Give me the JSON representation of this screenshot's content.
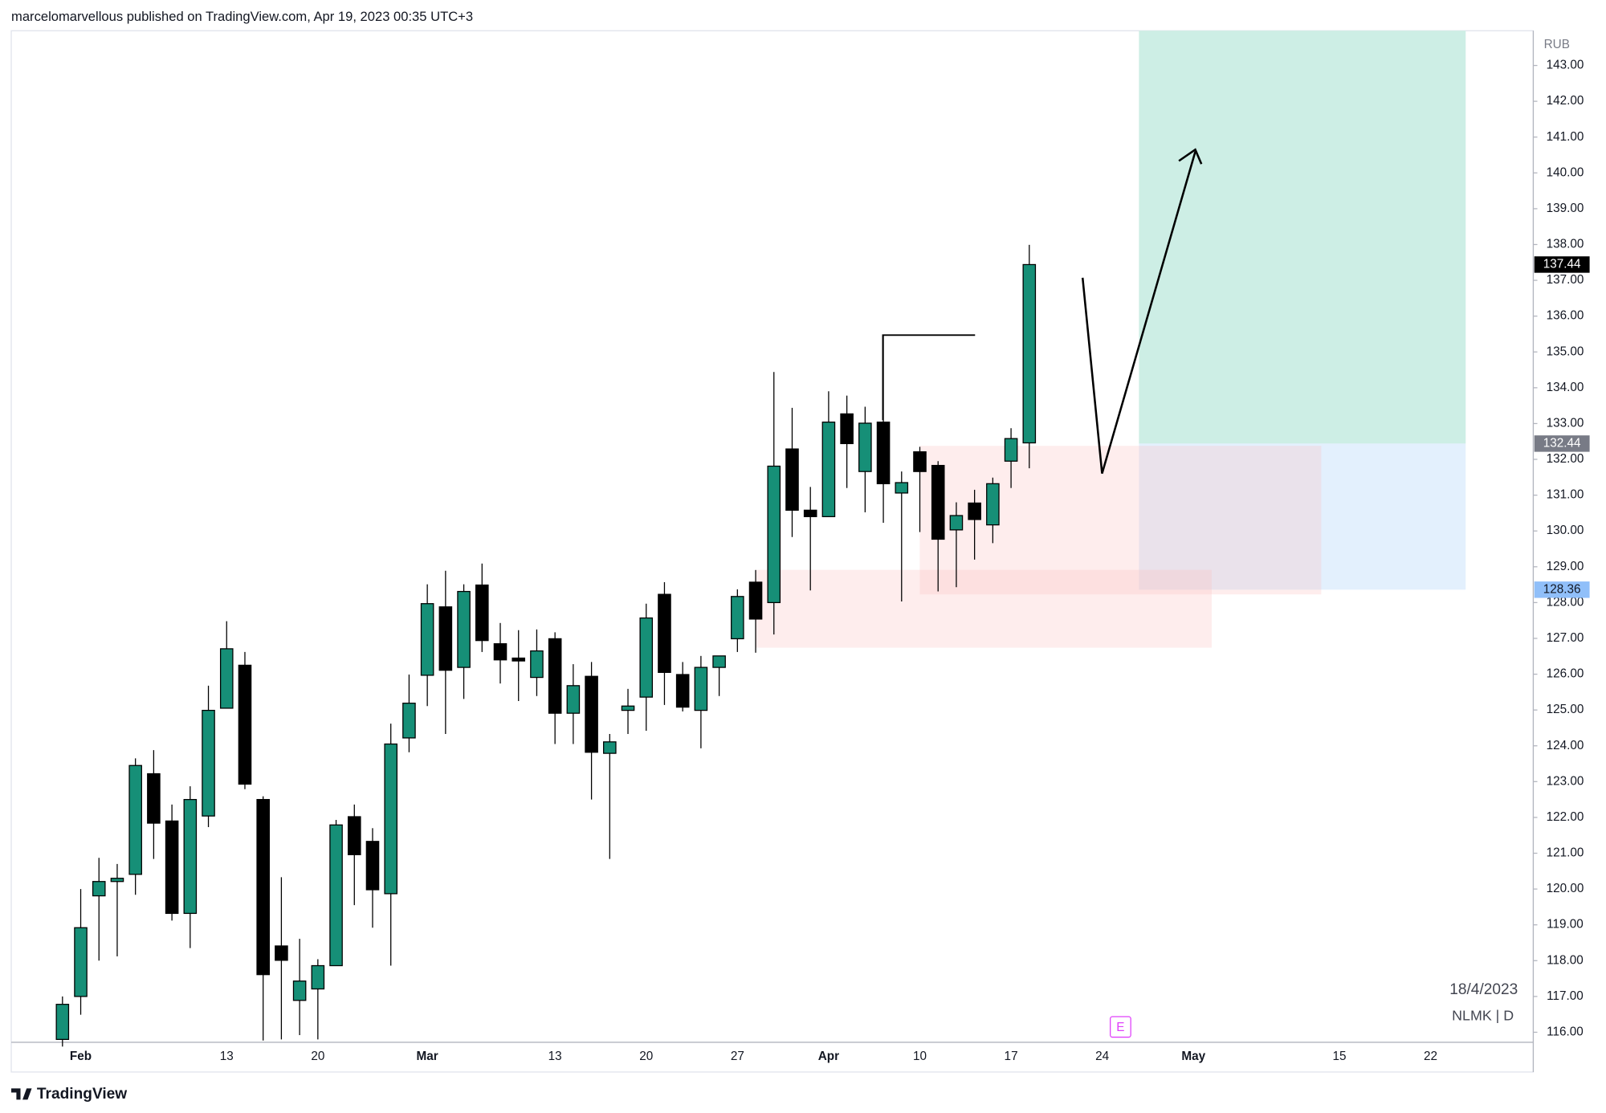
{
  "header": "marcelomarvellous published on TradingView.com, Apr 19, 2023 00:35 UTC+3",
  "chart_data": {
    "type": "candlestick",
    "currency": "RUB",
    "date_label": "18/4/2023",
    "symbol_label": "NLMK | D",
    "event_marker": "E",
    "up_color": "#168f77",
    "down_color": "#000000",
    "ylim": [
      115.72,
      143.97
    ],
    "yticks": [
      {
        "value": 116,
        "label": "116.00"
      },
      {
        "value": 117,
        "label": "117.00"
      },
      {
        "value": 118,
        "label": "118.00"
      },
      {
        "value": 119,
        "label": "119.00"
      },
      {
        "value": 120,
        "label": "120.00"
      },
      {
        "value": 121,
        "label": "121.00"
      },
      {
        "value": 122,
        "label": "122.00"
      },
      {
        "value": 123,
        "label": "123.00"
      },
      {
        "value": 124,
        "label": "124.00"
      },
      {
        "value": 125,
        "label": "125.00"
      },
      {
        "value": 126,
        "label": "126.00"
      },
      {
        "value": 127,
        "label": "127.00"
      },
      {
        "value": 128,
        "label": "128.00"
      },
      {
        "value": 129,
        "label": "129.00"
      },
      {
        "value": 130,
        "label": "130.00"
      },
      {
        "value": 131,
        "label": "131.00"
      },
      {
        "value": 132,
        "label": "132.00"
      },
      {
        "value": 133,
        "label": "133.00"
      },
      {
        "value": 134,
        "label": "134.00"
      },
      {
        "value": 135,
        "label": "135.00"
      },
      {
        "value": 136,
        "label": "136.00"
      },
      {
        "value": 137,
        "label": "137.00"
      },
      {
        "value": 138,
        "label": "138.00"
      },
      {
        "value": 139,
        "label": "139.00"
      },
      {
        "value": 140,
        "label": "140.00"
      },
      {
        "value": 141,
        "label": "141.00"
      },
      {
        "value": 142,
        "label": "142.00"
      },
      {
        "value": 143,
        "label": "143.00"
      }
    ],
    "categories": [
      null,
      "Feb",
      null,
      null,
      null,
      null,
      null,
      null,
      null,
      "13",
      null,
      null,
      null,
      null,
      "20",
      null,
      null,
      null,
      null,
      null,
      "Mar",
      null,
      null,
      null,
      null,
      null,
      null,
      "13",
      null,
      null,
      null,
      null,
      "20",
      null,
      null,
      null,
      null,
      "27",
      null,
      null,
      null,
      null,
      "Apr",
      null,
      null,
      null,
      null,
      "10",
      null,
      null,
      null,
      null,
      "17",
      null,
      null,
      null,
      null,
      "24",
      null,
      null,
      null,
      null,
      "May",
      null,
      null,
      null,
      null,
      null,
      null,
      null,
      "15",
      null,
      null,
      null,
      null,
      "22",
      null,
      null,
      null,
      null,
      null
    ],
    "open": [
      115.8,
      117.0,
      119.81,
      120.21,
      120.41,
      123.22,
      121.9,
      119.32,
      122.04,
      125.05,
      126.25,
      122.5,
      118.41,
      116.89,
      117.21,
      117.86,
      122.02,
      121.33,
      119.87,
      124.22,
      125.97,
      127.88,
      126.19,
      128.49,
      126.85,
      126.45,
      125.91,
      126.99,
      124.91,
      125.94,
      123.79,
      124.99,
      125.36,
      128.23,
      125.99,
      124.99,
      126.19,
      126.99,
      128.57,
      128.0,
      132.29,
      130.58,
      130.4,
      133.27,
      131.66,
      133.04,
      131.06,
      132.21,
      131.83,
      130.03,
      130.78,
      130.17,
      131.95,
      132.46,
      null,
      null,
      null,
      null,
      null,
      null,
      null,
      null,
      null,
      null,
      null,
      null,
      null,
      null,
      null,
      null,
      null,
      null,
      null,
      null,
      null,
      null,
      null,
      null,
      null,
      null,
      null
    ],
    "high": [
      117.0,
      120.0,
      120.87,
      120.7,
      123.65,
      123.88,
      122.36,
      122.87,
      125.68,
      127.48,
      126.62,
      122.59,
      120.33,
      118.61,
      118.04,
      121.93,
      122.36,
      121.7,
      124.62,
      125.99,
      128.51,
      128.89,
      128.51,
      129.09,
      127.43,
      127.23,
      127.25,
      127.17,
      126.28,
      126.34,
      124.33,
      125.59,
      127.97,
      128.57,
      126.34,
      126.51,
      126.51,
      128.37,
      128.91,
      134.44,
      133.44,
      131.23,
      133.9,
      133.78,
      133.47,
      135.47,
      131.66,
      132.35,
      131.95,
      130.8,
      131.15,
      131.49,
      132.87,
      137.99,
      null,
      null,
      null,
      null,
      null,
      null,
      null,
      null,
      null,
      null,
      null,
      null,
      null,
      null,
      null,
      null,
      null,
      null,
      null,
      null,
      null,
      null,
      null,
      null,
      null,
      null,
      null
    ],
    "low": [
      115.6,
      116.49,
      118.0,
      118.12,
      119.84,
      120.84,
      119.12,
      118.35,
      121.73,
      125.05,
      122.79,
      115.77,
      115.8,
      115.92,
      115.8,
      117.86,
      119.55,
      118.92,
      117.86,
      123.82,
      125.11,
      124.33,
      125.31,
      126.62,
      125.74,
      125.25,
      125.39,
      124.05,
      124.05,
      122.5,
      120.84,
      124.33,
      124.42,
      125.14,
      124.96,
      123.93,
      125.39,
      126.62,
      126.6,
      127.11,
      129.83,
      128.34,
      130.4,
      131.2,
      130.52,
      130.23,
      128.03,
      129.97,
      128.31,
      128.43,
      129.2,
      129.66,
      131.2,
      131.75,
      null,
      null,
      null,
      null,
      null,
      null,
      null,
      null,
      null,
      null,
      null,
      null,
      null,
      null,
      null,
      null,
      null,
      null,
      null,
      null,
      null,
      null,
      null,
      null,
      null,
      null,
      null
    ],
    "close": [
      116.78,
      118.92,
      120.21,
      120.3,
      123.45,
      121.84,
      119.32,
      122.5,
      124.99,
      126.71,
      122.93,
      117.61,
      118.01,
      117.43,
      117.86,
      121.79,
      120.96,
      119.98,
      124.05,
      125.19,
      127.97,
      126.11,
      128.31,
      126.94,
      126.4,
      126.37,
      126.65,
      124.91,
      125.68,
      123.82,
      124.11,
      125.11,
      127.57,
      126.05,
      125.08,
      126.19,
      126.51,
      128.17,
      127.54,
      131.81,
      130.58,
      130.4,
      133.04,
      132.44,
      133.01,
      131.32,
      131.35,
      131.66,
      129.77,
      130.43,
      130.32,
      131.32,
      132.58,
      137.44,
      null,
      null,
      null,
      null,
      null,
      null,
      null,
      null,
      null,
      null,
      null,
      null,
      null,
      null,
      null,
      null,
      null,
      null,
      null,
      null,
      null,
      null,
      null,
      null,
      null,
      null,
      null
    ],
    "position": {
      "entry": 132.44,
      "stop": 128.36
    }
  },
  "footer": "TradingView"
}
